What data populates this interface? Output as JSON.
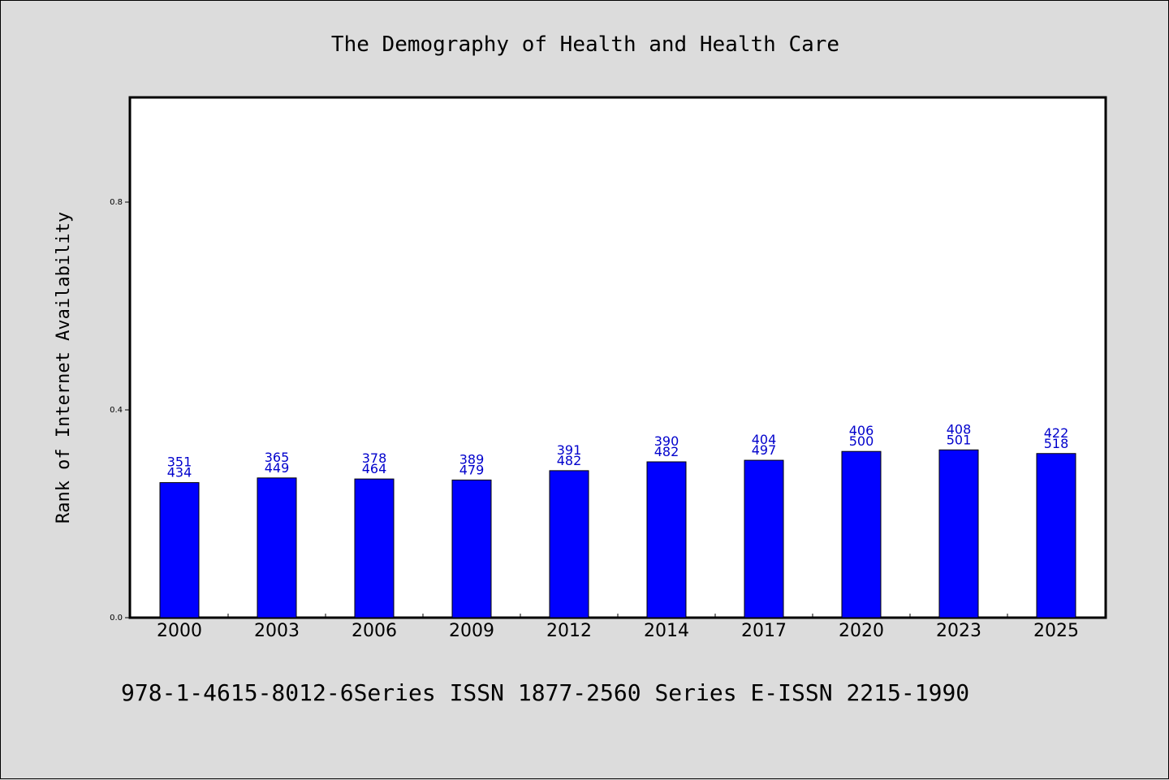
{
  "chart_data": {
    "type": "bar",
    "title": "The Demography of Health and Health Care",
    "xlabel": "",
    "ylabel": "Rank of Internet Availability",
    "footer": "978-1-4615-8012-6Series ISSN 1877-2560 Series E-ISSN 2215-1990",
    "categories": [
      "2000",
      "2003",
      "2006",
      "2009",
      "2012",
      "2014",
      "2017",
      "2020",
      "2023",
      "2025"
    ],
    "values": [
      0.26,
      0.269,
      0.267,
      0.265,
      0.283,
      0.3,
      0.303,
      0.32,
      0.323,
      0.316
    ],
    "label_top": [
      "351",
      "365",
      "378",
      "389",
      "391",
      "390",
      "404",
      "406",
      "408",
      "422"
    ],
    "label_bottom": [
      "434",
      "449",
      "464",
      "479",
      "482",
      "482",
      "497",
      "500",
      "501",
      "518"
    ],
    "yticks": [
      "0.0",
      "0.4",
      "0.8"
    ],
    "ytick_values": [
      0.0,
      0.4,
      0.8
    ],
    "ylim": [
      0,
      1.0
    ],
    "grid": false,
    "colors": {
      "bar": "#0000ff",
      "data_label": "#0000cc",
      "background": "#dcdcdc",
      "plot_background": "#ffffff"
    }
  }
}
